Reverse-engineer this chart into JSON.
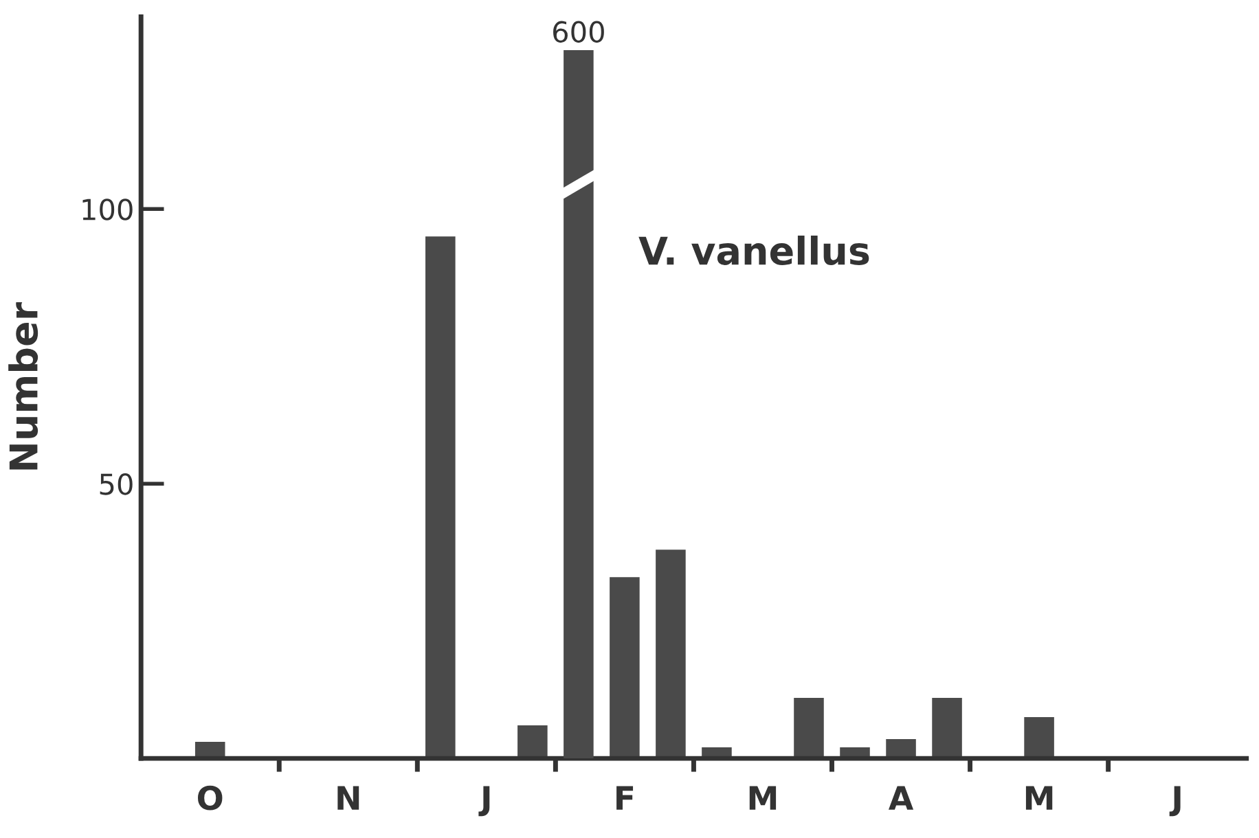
{
  "chart_data": [
    {
      "type": "bar",
      "ylabel": "Number",
      "annotations": [
        "V. vanellus"
      ],
      "categories": [
        null,
        "O",
        null,
        null,
        "N",
        null,
        null,
        "J",
        null,
        null,
        "F",
        null,
        null,
        "M",
        null,
        null,
        "A",
        null,
        null,
        "M",
        null,
        null,
        "J",
        null
      ],
      "values": [
        null,
        3,
        null,
        null,
        null,
        null,
        95,
        null,
        6,
        null,
        33,
        38,
        2,
        null,
        11,
        2,
        3.5,
        11,
        null,
        7.5,
        null,
        null,
        null,
        null
      ],
      "color": "#4a4a4a",
      "ylim": [
        0,
        135
      ],
      "yticks": [
        50,
        100
      ],
      "grid": false
    },
    {
      "type": "bar",
      "categories": [
        null,
        null,
        null,
        null,
        null,
        null,
        null,
        null,
        null,
        null,
        null,
        null,
        null,
        null,
        null,
        null,
        null,
        null,
        null,
        null,
        null,
        null,
        null,
        null
      ],
      "values": [
        null,
        null,
        null,
        null,
        null,
        null,
        null,
        null,
        null,
        600,
        null,
        null,
        null,
        null,
        null,
        null,
        null,
        null,
        null,
        null,
        null,
        null,
        null,
        null
      ],
      "data_labels": true,
      "color": "#4a4a4a",
      "tick_labels": false
    }
  ]
}
